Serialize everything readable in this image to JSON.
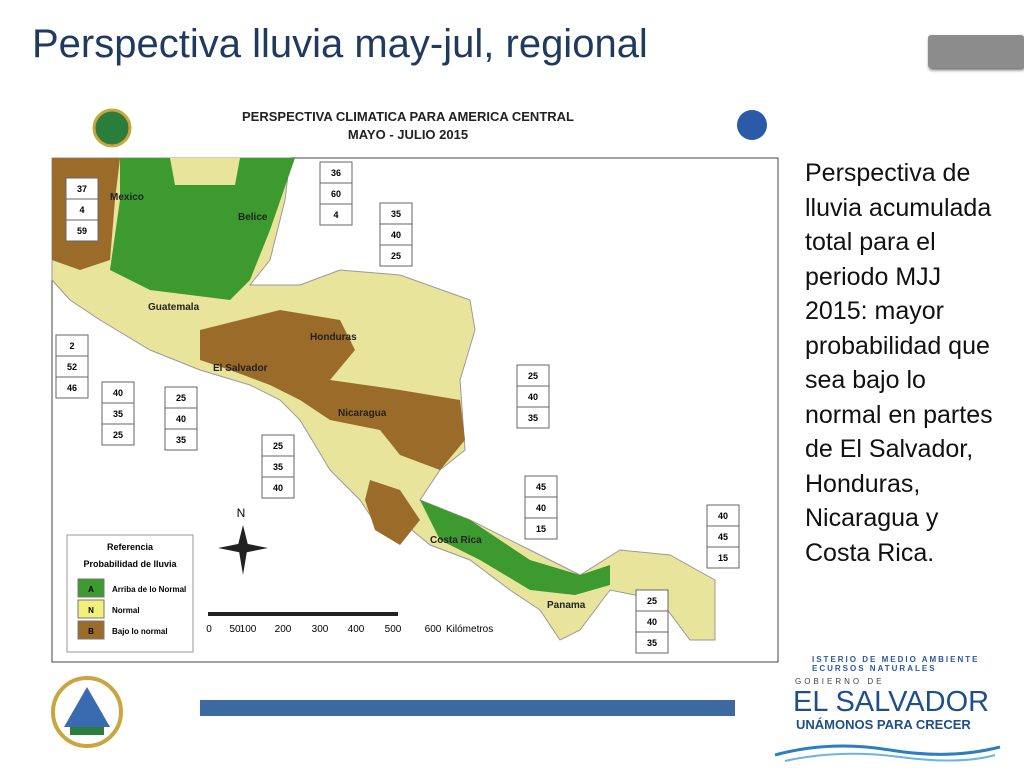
{
  "slide": {
    "title": "Perspectiva lluvia may-jul, regional",
    "body": "Perspectiva de lluvia acumulada total para el periodo MJJ 2015: mayor probabilidad que sea bajo lo normal en partes de El Salvador, Honduras, Nicaragua y Costa Rica."
  },
  "map": {
    "title": "PERSPECTIVA CLIMATICA PARA AMERICA CENTRAL",
    "subtitle": "MAYO - JULIO 2015",
    "countries": [
      "Mexico",
      "Belice",
      "Guatemala",
      "Honduras",
      "El Salvador",
      "Nicaragua",
      "Costa Rica",
      "Panama"
    ],
    "boxes": [
      [
        37,
        4,
        59
      ],
      [
        36,
        60,
        4
      ],
      [
        35,
        40,
        25
      ],
      [
        2,
        52,
        46
      ],
      [
        40,
        35,
        25
      ],
      [
        25,
        40,
        35
      ],
      [
        25,
        40,
        35
      ],
      [
        25,
        35,
        40
      ],
      [
        45,
        40,
        15
      ],
      [
        40,
        45,
        15
      ],
      [
        25,
        40,
        35
      ]
    ],
    "north": "N",
    "scale": {
      "ticks": [
        "0",
        "50",
        "100",
        "200",
        "300",
        "400",
        "500",
        "600"
      ],
      "unit": "Kilómetros"
    },
    "legend": {
      "title": "Referencia",
      "subtitle": "Probabilidad de lluvia",
      "items": [
        {
          "code": "A",
          "label": "Arriba de lo Normal"
        },
        {
          "code": "N",
          "label": "Normal"
        },
        {
          "code": "B",
          "label": "Bajo lo normal"
        }
      ]
    }
  },
  "footer": {
    "ministry": [
      "ISTERIO DE MEDIO AMBIENTE",
      "ECURSOS NATURALES"
    ],
    "gov": "GOBIERNO DE",
    "country": "EL SALVADOR",
    "slogan": "UNÁMONOS PARA CRECER"
  }
}
